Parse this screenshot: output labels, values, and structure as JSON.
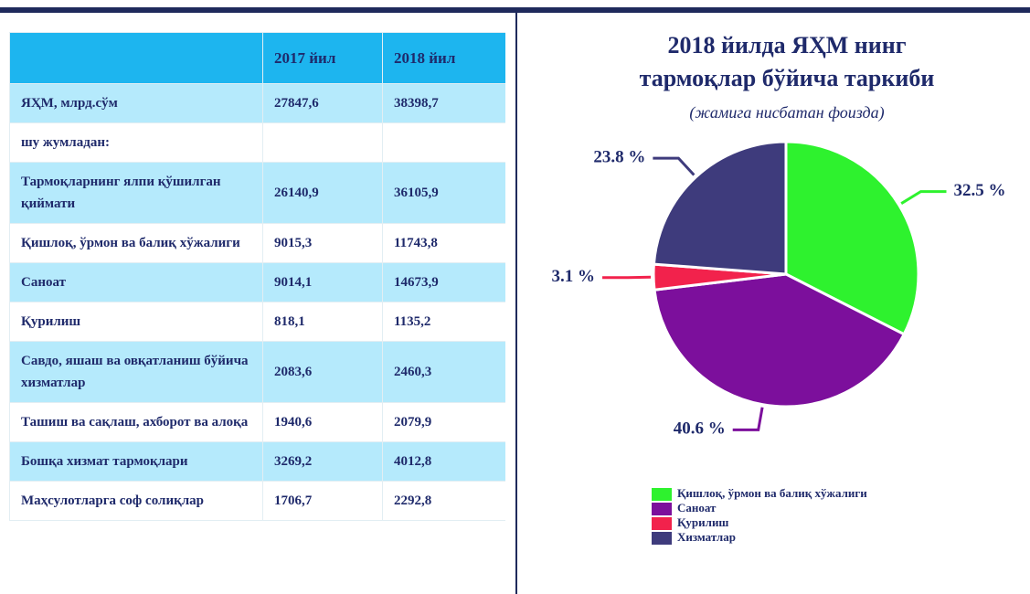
{
  "table": {
    "columns": [
      "2017 йил",
      "2018 йил"
    ],
    "rows": [
      [
        "ЯҲМ, млрд.сўм",
        "27847,6",
        "38398,7"
      ],
      [
        "шу жумладан:"
      ],
      [
        "Тармоқларнинг ялпи қўшилган қиймати",
        "26140,9",
        "36105,9"
      ],
      [
        "Қишлоқ, ўрмон ва балиқ хўжалиги",
        "9015,3",
        "11743,8"
      ],
      [
        "Саноат",
        "9014,1",
        "14673,9"
      ],
      [
        "Қурилиш",
        "818,1",
        "1135,2"
      ],
      [
        "Савдо, яшаш ва овқатланиш бўйича хизматлар",
        "2083,6",
        "2460,3"
      ],
      [
        "Ташиш ва сақлаш, ахборот ва алоқа",
        "1940,6",
        "2079,9"
      ],
      [
        "Бошқа хизмат тармоқлари",
        "3269,2",
        "4012,8"
      ],
      [
        "Маҳсулотларга соф солиқлар",
        "1706,7",
        "2292,8"
      ]
    ]
  },
  "chart_data": {
    "type": "pie",
    "title": [
      "2018 йилда ЯҲМ нинг",
      "тармоқлар бўйича таркиби"
    ],
    "subtitle": "(жамига нисбатан фоизда)",
    "categories": [
      "Қишлоқ, ўрмон ва балиқ хўжалиги",
      "Саноат",
      "Қурилиш",
      "Хизматлар"
    ],
    "values": [
      32.5,
      40.6,
      3.1,
      23.8
    ],
    "value_labels": [
      "32.5 %",
      "40.6 %",
      "3.1 %",
      "23.8 %"
    ],
    "colors": [
      "#2ef22e",
      "#7c0f9c",
      "#f2224c",
      "#3e3b7c"
    ],
    "legend": "bottom"
  }
}
